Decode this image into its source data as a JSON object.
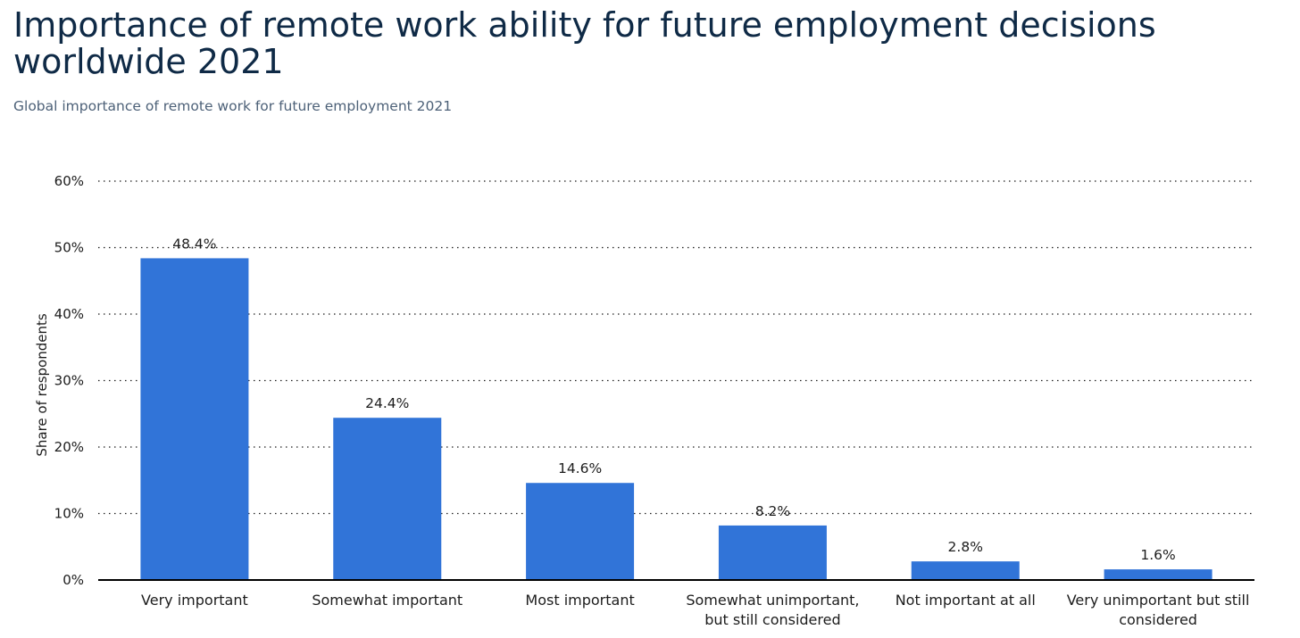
{
  "header": {
    "title": "Importance of remote work ability for future employment decisions worldwide 2021",
    "subtitle": "Global importance of remote work for future employment 2021"
  },
  "chart_data": {
    "type": "bar",
    "categories": [
      [
        "Very important"
      ],
      [
        "Somewhat important"
      ],
      [
        "Most important"
      ],
      [
        "Somewhat unimportant,",
        "but still considered"
      ],
      [
        "Not important at all"
      ],
      [
        "Very unimportant but still",
        "considered"
      ]
    ],
    "values": [
      48.4,
      24.4,
      14.6,
      8.2,
      2.8,
      1.6
    ],
    "value_labels": [
      "48.4%",
      "24.4%",
      "14.6%",
      "8.2%",
      "2.8%",
      "1.6%"
    ],
    "ylabel": "Share of respondents",
    "ylim": [
      0,
      60
    ],
    "yticks": [
      0,
      10,
      20,
      30,
      40,
      50,
      60
    ],
    "ytick_labels": [
      "0%",
      "10%",
      "20%",
      "30%",
      "40%",
      "50%",
      "60%"
    ],
    "grid": "dotted horizontal",
    "bar_color": "#3174d8"
  }
}
